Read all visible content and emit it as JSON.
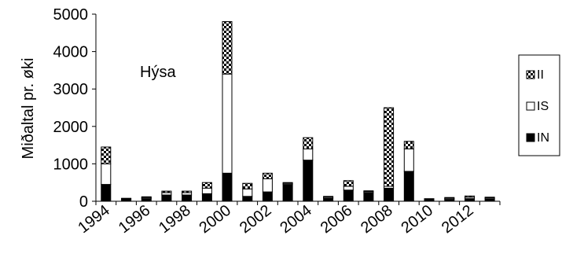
{
  "chart_data": {
    "type": "bar",
    "stacked": true,
    "annotation": "Hýsa",
    "ylabel": "Miðaltal pr. øki",
    "ylim": [
      0,
      5000
    ],
    "yticks": [
      0,
      1000,
      2000,
      3000,
      4000,
      5000
    ],
    "xtick_labels": [
      "1994",
      "1996",
      "1998",
      "2000",
      "2002",
      "2004",
      "2006",
      "2008",
      "2010",
      "2012"
    ],
    "categories": [
      "1994",
      "1995",
      "1996",
      "1997",
      "1998",
      "1999",
      "2000",
      "2001",
      "2002",
      "2003",
      "2004",
      "2005",
      "2006",
      "2007",
      "2008",
      "2009",
      "2010",
      "2011",
      "2012",
      "2013"
    ],
    "series": [
      {
        "name": "IN",
        "values": [
          450,
          50,
          70,
          170,
          170,
          200,
          750,
          130,
          250,
          450,
          1100,
          80,
          300,
          230,
          350,
          800,
          40,
          50,
          70,
          60
        ]
      },
      {
        "name": "IS",
        "values": [
          550,
          20,
          30,
          60,
          60,
          150,
          2650,
          200,
          350,
          30,
          300,
          30,
          100,
          30,
          50,
          600,
          20,
          30,
          40,
          30
        ]
      },
      {
        "name": "II",
        "values": [
          450,
          10,
          20,
          40,
          40,
          150,
          1400,
          150,
          150,
          20,
          300,
          20,
          150,
          20,
          2100,
          200,
          10,
          20,
          30,
          20
        ]
      }
    ],
    "legend_order": [
      "II",
      "IS",
      "IN"
    ],
    "legend_position": "right",
    "grid": false
  }
}
